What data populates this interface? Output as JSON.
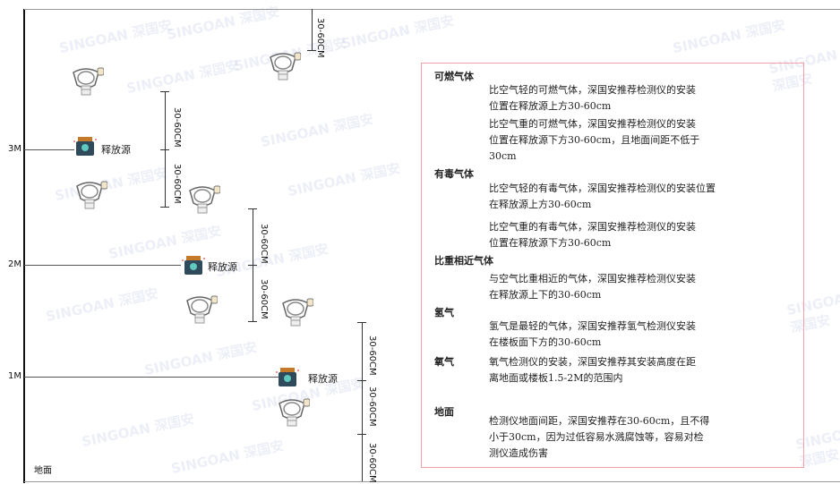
{
  "levels": {
    "m3": "3M",
    "m2": "2M",
    "m1": "1M",
    "floor": "地面"
  },
  "dimension_label": "30-60CM",
  "source_label": "释放源",
  "watermark": "SINGOAN 深国安",
  "panel": {
    "sections": [
      {
        "title": "可燃气体",
        "paragraphs": [
          "比空气轻的可燃气体，深国安推荐检测仪的安装\n位置在释放源上方30-60cm",
          "比空气重的可燃气体，深国安推荐检测仪的安装\n位置在释放源下方30-60cm，且地面间距不低于\n30cm"
        ]
      },
      {
        "title": "有毒气体",
        "paragraphs": [
          "比空气轻的有毒气体，深国安推荐检测仪的安装位置\n在释放源上方30-60cm",
          "比空气重的有毒气体，深国安推荐检测仪的安装\n位置在释放源下方30-60cm"
        ]
      },
      {
        "title": "比重相近气体",
        "paragraphs": [
          "与空气比重相近的气体，深国安推荐检测仪安装\n在释放源上下的30-60cm"
        ]
      },
      {
        "title": "氢气",
        "paragraphs": [
          "氢气是最轻的气体，深国安推荐氢气检测仪安装\n在楼板面下方的30-60cm"
        ]
      },
      {
        "title": "氧气",
        "paragraphs": [
          "氧气检测仪的安装，深国安推荐其安装高度在距\n离地面或楼板1.5-2M的范围内"
        ]
      },
      {
        "title": "地面",
        "paragraphs": [
          "检测仪地面间距，深国安推荐在30-60cm，且不得\n小于30cm，因为过低容易水溅腐蚀等，容易对检\n测仪造成伤害"
        ]
      }
    ]
  },
  "colors": {
    "panel_border": "#f3a0a8",
    "source_body": "#2f4a5a",
    "source_cap": "#c57a2a"
  }
}
